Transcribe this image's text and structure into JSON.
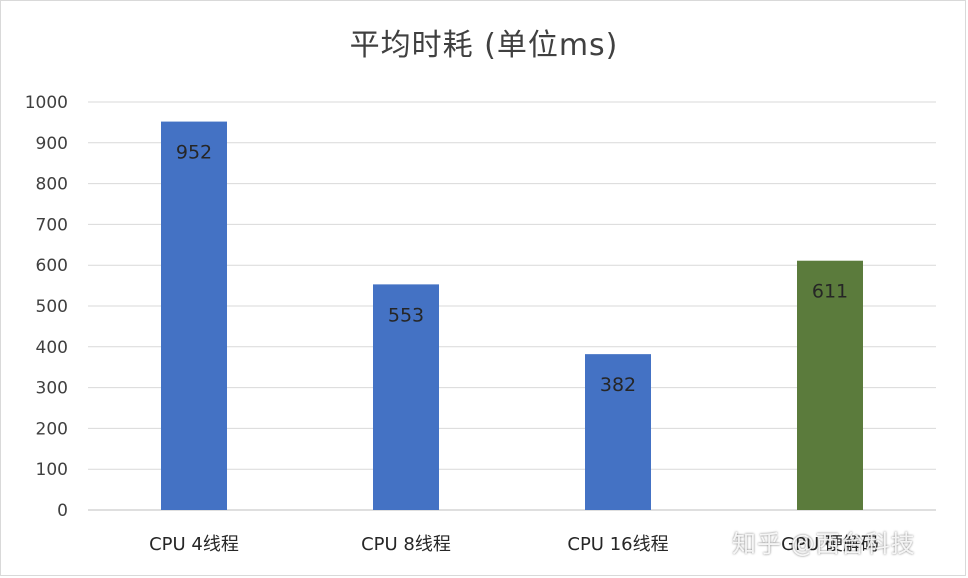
{
  "chart_data": {
    "type": "bar",
    "title": "平均时耗 (单位ms)",
    "categories": [
      "CPU 4线程",
      "CPU 8线程",
      "CPU 16线程",
      "GPU 硬解码"
    ],
    "values": [
      952,
      553,
      382,
      611
    ],
    "colors": [
      "#4472c4",
      "#4472c4",
      "#4472c4",
      "#5b7b3c"
    ],
    "ylim": [
      0,
      1000
    ],
    "yticks": [
      "0",
      "100",
      "200",
      "300",
      "400",
      "500",
      "600",
      "700",
      "800",
      "900",
      "1000"
    ],
    "data_labels": [
      "952",
      "553",
      "382",
      "611"
    ],
    "grid": true,
    "legend": "none"
  },
  "watermark": "知乎 @西台科技"
}
